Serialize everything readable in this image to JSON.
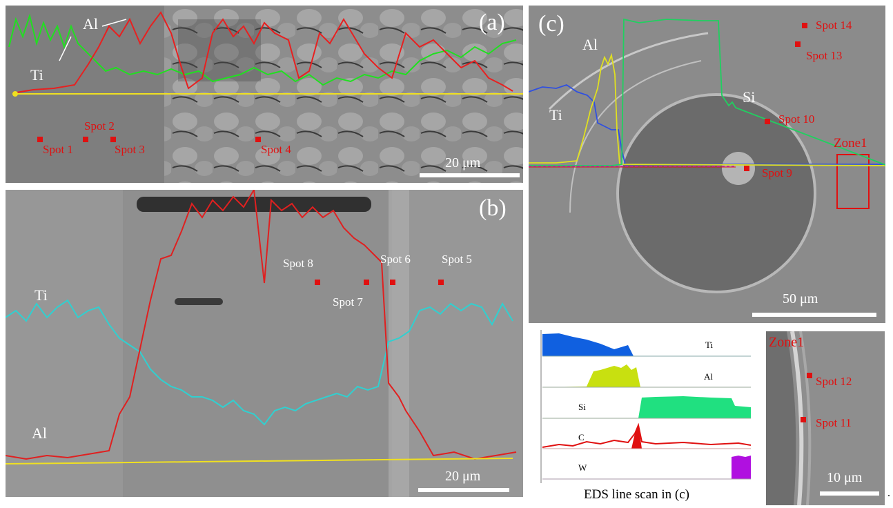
{
  "panel_a": {
    "letter": "(a)",
    "elements": {
      "al": "Al",
      "ti": "Ti"
    },
    "spots": {
      "s1": "Spot 1",
      "s2": "Spot 2",
      "s3": "Spot 3",
      "s4": "Spot 4"
    },
    "scale": "20 μm"
  },
  "panel_b": {
    "letter": "(b)",
    "elements": {
      "ti": "Ti",
      "al": "Al"
    },
    "spots": {
      "s5": "Spot 5",
      "s6": "Spot 6",
      "s7": "Spot 7",
      "s8": "Spot 8"
    },
    "scale": "20 μm"
  },
  "panel_c": {
    "letter": "(c)",
    "elements": {
      "al": "Al",
      "ti": "Ti",
      "si": "Si"
    },
    "spots": {
      "s9": "Spot 9",
      "s10": "Spot 10",
      "s13": "Spot 13",
      "s14": "Spot 14"
    },
    "zone": "Zone1",
    "scale": "50 μm"
  },
  "eds_scan": {
    "title": "EDS line scan in (c)",
    "channels": [
      {
        "name": "Ti",
        "color": "#1060e0"
      },
      {
        "name": "Al",
        "color": "#c8e010"
      },
      {
        "name": "Si",
        "color": "#20e080"
      },
      {
        "name": "C",
        "color": "#e01010"
      },
      {
        "name": "W",
        "color": "#b010e0"
      }
    ]
  },
  "zone_panel": {
    "title": "Zone1",
    "spots": {
      "s11": "Spot 11",
      "s12": "Spot 12"
    },
    "scale": "10 μm"
  },
  "trailing_mark": "."
}
